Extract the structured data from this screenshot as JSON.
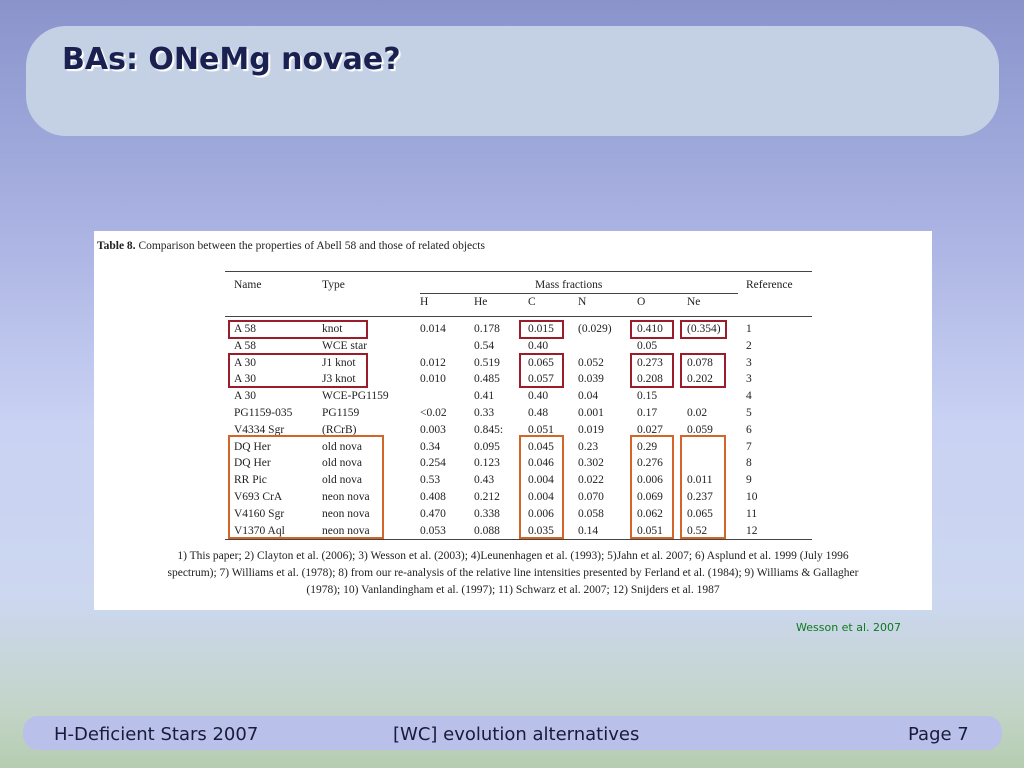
{
  "slide_title": "BAs: ONeMg novae?",
  "table": {
    "caption_label": "Table 8.",
    "caption_text": " Comparison between the properties of Abell 58 and those of related objects",
    "headers": {
      "name": "Name",
      "type": "Type",
      "mass_fractions": "Mass fractions",
      "reference": "Reference",
      "h": "H",
      "he": "He",
      "c": "C",
      "n": "N",
      "o": "O",
      "ne": "Ne"
    },
    "rows": [
      {
        "name": "A 58",
        "type": "knot",
        "h": "0.014",
        "he": "0.178",
        "c": "0.015",
        "n": "(0.029)",
        "o": "0.410",
        "ne": "(0.354)",
        "ref": "1"
      },
      {
        "name": "A 58",
        "type": "WCE star",
        "h": "",
        "he": "0.54",
        "c": "0.40",
        "n": "",
        "o": "0.05",
        "ne": "",
        "ref": "2"
      },
      {
        "name": "A 30",
        "type": "J1 knot",
        "h": "0.012",
        "he": "0.519",
        "c": "0.065",
        "n": "0.052",
        "o": "0.273",
        "ne": "0.078",
        "ref": "3"
      },
      {
        "name": "A 30",
        "type": "J3 knot",
        "h": "0.010",
        "he": "0.485",
        "c": "0.057",
        "n": "0.039",
        "o": "0.208",
        "ne": "0.202",
        "ref": "3"
      },
      {
        "name": "A 30",
        "type": "WCE-PG1159",
        "h": "",
        "he": "0.41",
        "c": "0.40",
        "n": "0.04",
        "o": "0.15",
        "ne": "",
        "ref": "4"
      },
      {
        "name": "PG1159-035",
        "type": "PG1159",
        "h": "<0.02",
        "he": "0.33",
        "c": "0.48",
        "n": "0.001",
        "o": "0.17",
        "ne": "0.02",
        "ref": "5"
      },
      {
        "name": "V4334 Sgr",
        "type": "(RCrB)",
        "h": "0.003",
        "he": "0.845:",
        "c": "0.051",
        "n": "0.019",
        "o": "0.027",
        "ne": "0.059",
        "ref": "6"
      },
      {
        "name": "DQ Her",
        "type": "old nova",
        "h": "0.34",
        "he": "0.095",
        "c": "0.045",
        "n": "0.23",
        "o": "0.29",
        "ne": "",
        "ref": "7"
      },
      {
        "name": "DQ Her",
        "type": "old nova",
        "h": "0.254",
        "he": "0.123",
        "c": "0.046",
        "n": "0.302",
        "o": "0.276",
        "ne": "",
        "ref": "8"
      },
      {
        "name": "RR Pic",
        "type": "old nova",
        "h": "0.53",
        "he": "0.43",
        "c": "0.004",
        "n": "0.022",
        "o": "0.006",
        "ne": "0.011",
        "ref": "9"
      },
      {
        "name": "V693 CrA",
        "type": "neon nova",
        "h": "0.408",
        "he": "0.212",
        "c": "0.004",
        "n": "0.070",
        "o": "0.069",
        "ne": "0.237",
        "ref": "10"
      },
      {
        "name": "V4160 Sgr",
        "type": "neon nova",
        "h": "0.470",
        "he": "0.338",
        "c": "0.006",
        "n": "0.058",
        "o": "0.062",
        "ne": "0.065",
        "ref": "11"
      },
      {
        "name": "V1370 Aql",
        "type": "neon nova",
        "h": "0.053",
        "he": "0.088",
        "c": "0.035",
        "n": "0.14",
        "o": "0.051",
        "ne": "0.52",
        "ref": "12"
      }
    ],
    "references": [
      "1) This paper; 2) Clayton et al. (2006); 3) Wesson et al. (2003); 4)Leunenhagen et al. (1993); 5)Jahn et al. 2007; 6) Asplund et al. 1999 (July 1996",
      "spectrum); 7) Williams et al. (1978); 8) from our re-analysis of the relative line intensities presented by Ferland et al. (1984); 9) Williams & Gallagher",
      "(1978); 10) Vanlandingham et al. (1997); 11) Schwarz et al. 2007; 12) Snijders et al. 1987"
    ]
  },
  "credit": "Wesson et al. 2007",
  "footer": {
    "left": "H-Deficient Stars 2007",
    "center": "[WC] evolution alternatives",
    "right": "Page 7"
  },
  "colors": {
    "highlight_red": "#9b1c2a",
    "highlight_orange": "#d2662a",
    "credit_green": "#0c7a1e",
    "title_text": "#1a2050"
  }
}
